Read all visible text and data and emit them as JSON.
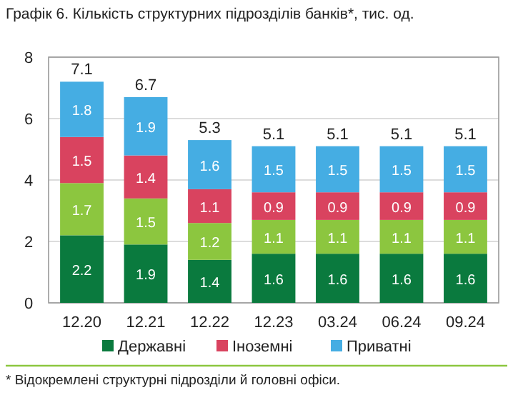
{
  "chart_data": {
    "type": "bar",
    "stacked": true,
    "title": "Графік 6. Кількість структурних підрозділів банків*, тис. од.",
    "categories": [
      "12.20",
      "12.21",
      "12.22",
      "12.23",
      "03.24",
      "06.24",
      "09.24"
    ],
    "series": [
      {
        "name": "Державні",
        "color": "#0a7a3e",
        "values": [
          2.2,
          1.9,
          1.4,
          1.6,
          1.6,
          1.6,
          1.6
        ]
      },
      {
        "color": "#8cc63f",
        "values": [
          1.7,
          1.5,
          1.2,
          1.1,
          1.1,
          1.1,
          1.1
        ]
      },
      {
        "name": "Іноземні",
        "color": "#d9435f",
        "values": [
          1.5,
          1.4,
          1.1,
          0.9,
          0.9,
          0.9,
          0.9
        ]
      },
      {
        "name": "Приватні",
        "color": "#45ade3",
        "values": [
          1.8,
          1.9,
          1.6,
          1.5,
          1.5,
          1.5,
          1.5
        ]
      }
    ],
    "totals": [
      "7.1",
      "6.7",
      "5.3",
      "5.1",
      "5.1",
      "5.1",
      "5.1"
    ],
    "data_labels": true,
    "ylim": [
      0,
      8
    ],
    "yticks": [
      0,
      2,
      4,
      6,
      8
    ],
    "grid": "y",
    "legend": "bottom",
    "annotations": [
      "* Відокремлені структурні підрозділи й головні офіси."
    ]
  }
}
